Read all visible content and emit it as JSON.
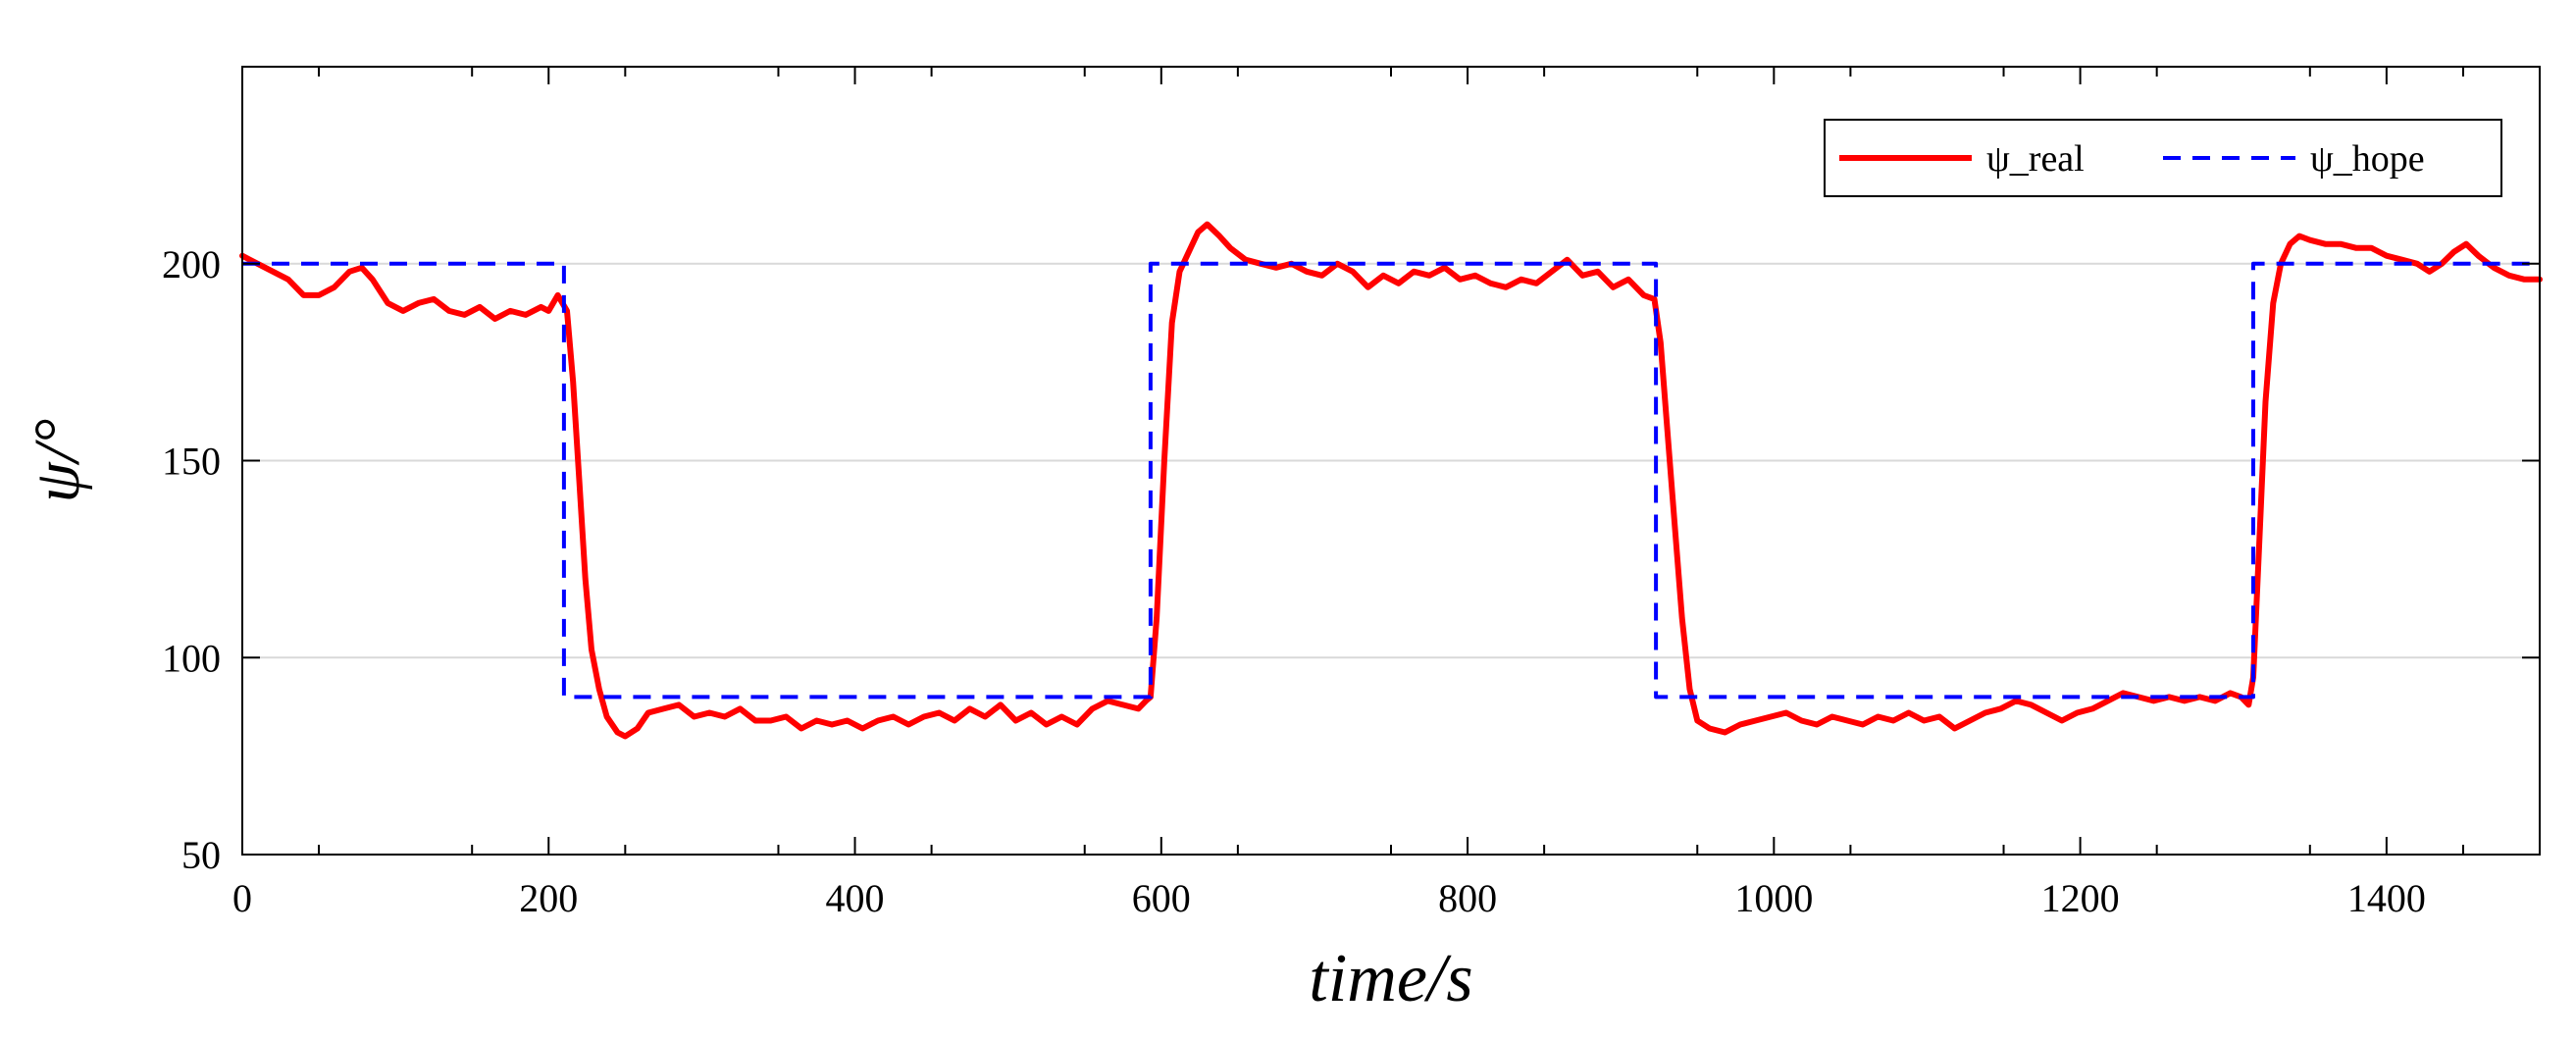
{
  "chart_data": {
    "type": "line",
    "title": "",
    "xlabel": "time/s",
    "ylabel": "ψ/°",
    "xlim": [
      0,
      1500
    ],
    "ylim": [
      50,
      250
    ],
    "x_ticks": [
      0,
      200,
      400,
      600,
      800,
      1000,
      1200,
      1400
    ],
    "y_ticks": [
      50,
      100,
      150,
      200
    ],
    "x_tick_labels": [
      "0",
      "200",
      "400",
      "600",
      "800",
      "1000",
      "1200",
      "1400"
    ],
    "y_tick_labels": [
      "50",
      "100",
      "150",
      "200"
    ],
    "grid": "horizontal",
    "legend_position": "top-right",
    "series": [
      {
        "name": "ψ_real",
        "color": "#ff0000",
        "style": "solid",
        "points": [
          [
            0,
            202
          ],
          [
            10,
            200
          ],
          [
            20,
            198
          ],
          [
            30,
            196
          ],
          [
            40,
            192
          ],
          [
            50,
            192
          ],
          [
            60,
            194
          ],
          [
            70,
            198
          ],
          [
            78,
            199
          ],
          [
            85,
            196
          ],
          [
            95,
            190
          ],
          [
            105,
            188
          ],
          [
            115,
            190
          ],
          [
            125,
            191
          ],
          [
            135,
            188
          ],
          [
            145,
            187
          ],
          [
            155,
            189
          ],
          [
            165,
            186
          ],
          [
            175,
            188
          ],
          [
            185,
            187
          ],
          [
            195,
            189
          ],
          [
            200,
            188
          ],
          [
            206,
            192
          ],
          [
            212,
            188
          ],
          [
            216,
            170
          ],
          [
            220,
            145
          ],
          [
            224,
            120
          ],
          [
            228,
            102
          ],
          [
            233,
            92
          ],
          [
            238,
            85
          ],
          [
            245,
            81
          ],
          [
            250,
            80
          ],
          [
            258,
            82
          ],
          [
            265,
            86
          ],
          [
            275,
            87
          ],
          [
            285,
            88
          ],
          [
            295,
            85
          ],
          [
            305,
            86
          ],
          [
            315,
            85
          ],
          [
            325,
            87
          ],
          [
            335,
            84
          ],
          [
            345,
            84
          ],
          [
            355,
            85
          ],
          [
            365,
            82
          ],
          [
            375,
            84
          ],
          [
            385,
            83
          ],
          [
            395,
            84
          ],
          [
            405,
            82
          ],
          [
            415,
            84
          ],
          [
            425,
            85
          ],
          [
            435,
            83
          ],
          [
            445,
            85
          ],
          [
            455,
            86
          ],
          [
            465,
            84
          ],
          [
            475,
            87
          ],
          [
            485,
            85
          ],
          [
            495,
            88
          ],
          [
            505,
            84
          ],
          [
            515,
            86
          ],
          [
            525,
            83
          ],
          [
            535,
            85
          ],
          [
            545,
            83
          ],
          [
            555,
            87
          ],
          [
            565,
            89
          ],
          [
            575,
            88
          ],
          [
            585,
            87
          ],
          [
            590,
            89
          ],
          [
            593,
            90
          ],
          [
            597,
            110
          ],
          [
            602,
            150
          ],
          [
            607,
            185
          ],
          [
            612,
            198
          ],
          [
            618,
            203
          ],
          [
            624,
            208
          ],
          [
            630,
            210
          ],
          [
            638,
            207
          ],
          [
            645,
            204
          ],
          [
            655,
            201
          ],
          [
            665,
            200
          ],
          [
            675,
            199
          ],
          [
            685,
            200
          ],
          [
            695,
            198
          ],
          [
            705,
            197
          ],
          [
            715,
            200
          ],
          [
            725,
            198
          ],
          [
            735,
            194
          ],
          [
            745,
            197
          ],
          [
            755,
            195
          ],
          [
            765,
            198
          ],
          [
            775,
            197
          ],
          [
            785,
            199
          ],
          [
            795,
            196
          ],
          [
            805,
            197
          ],
          [
            815,
            195
          ],
          [
            825,
            194
          ],
          [
            835,
            196
          ],
          [
            845,
            195
          ],
          [
            855,
            198
          ],
          [
            865,
            201
          ],
          [
            875,
            197
          ],
          [
            885,
            198
          ],
          [
            895,
            194
          ],
          [
            905,
            196
          ],
          [
            915,
            192
          ],
          [
            922,
            191
          ],
          [
            926,
            180
          ],
          [
            930,
            160
          ],
          [
            935,
            135
          ],
          [
            940,
            110
          ],
          [
            945,
            92
          ],
          [
            950,
            84
          ],
          [
            958,
            82
          ],
          [
            968,
            81
          ],
          [
            978,
            83
          ],
          [
            988,
            84
          ],
          [
            998,
            85
          ],
          [
            1008,
            86
          ],
          [
            1018,
            84
          ],
          [
            1028,
            83
          ],
          [
            1038,
            85
          ],
          [
            1048,
            84
          ],
          [
            1058,
            83
          ],
          [
            1068,
            85
          ],
          [
            1078,
            84
          ],
          [
            1088,
            86
          ],
          [
            1098,
            84
          ],
          [
            1108,
            85
          ],
          [
            1118,
            82
          ],
          [
            1128,
            84
          ],
          [
            1138,
            86
          ],
          [
            1148,
            87
          ],
          [
            1158,
            89
          ],
          [
            1168,
            88
          ],
          [
            1178,
            86
          ],
          [
            1188,
            84
          ],
          [
            1198,
            86
          ],
          [
            1208,
            87
          ],
          [
            1218,
            89
          ],
          [
            1228,
            91
          ],
          [
            1238,
            90
          ],
          [
            1248,
            89
          ],
          [
            1258,
            90
          ],
          [
            1268,
            89
          ],
          [
            1278,
            90
          ],
          [
            1288,
            89
          ],
          [
            1298,
            91
          ],
          [
            1305,
            90
          ],
          [
            1310,
            88
          ],
          [
            1313,
            95
          ],
          [
            1317,
            130
          ],
          [
            1321,
            165
          ],
          [
            1326,
            190
          ],
          [
            1331,
            200
          ],
          [
            1337,
            205
          ],
          [
            1343,
            207
          ],
          [
            1350,
            206
          ],
          [
            1360,
            205
          ],
          [
            1370,
            205
          ],
          [
            1380,
            204
          ],
          [
            1390,
            204
          ],
          [
            1400,
            202
          ],
          [
            1410,
            201
          ],
          [
            1420,
            200
          ],
          [
            1428,
            198
          ],
          [
            1436,
            200
          ],
          [
            1444,
            203
          ],
          [
            1452,
            205
          ],
          [
            1460,
            202
          ],
          [
            1470,
            199
          ],
          [
            1480,
            197
          ],
          [
            1490,
            196
          ],
          [
            1500,
            196
          ]
        ]
      },
      {
        "name": "ψ_hope",
        "color": "#0000ff",
        "style": "dashed",
        "points": [
          [
            0,
            200
          ],
          [
            210,
            200
          ],
          [
            210,
            90
          ],
          [
            593,
            90
          ],
          [
            593,
            200
          ],
          [
            923,
            200
          ],
          [
            923,
            90
          ],
          [
            1313,
            90
          ],
          [
            1313,
            200
          ],
          [
            1500,
            200
          ]
        ]
      }
    ]
  }
}
